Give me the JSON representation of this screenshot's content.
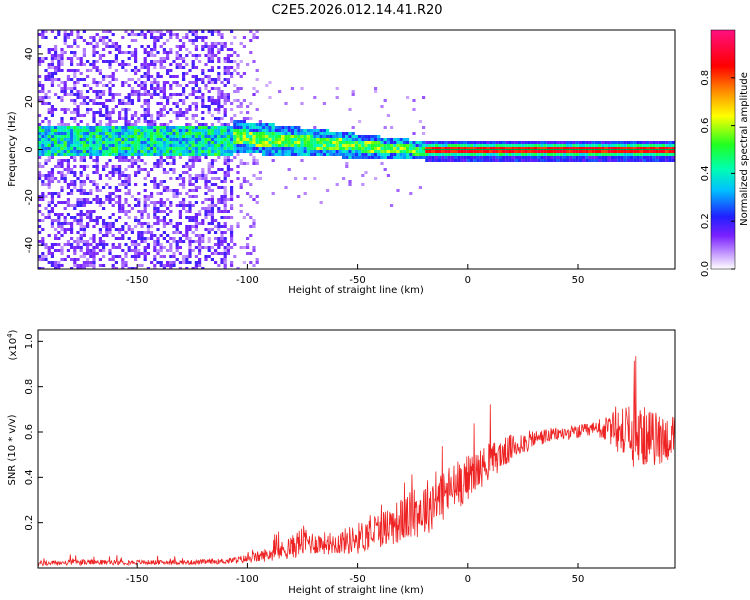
{
  "page_title": "C2E5.2026.012.14.41.R20",
  "chart_data": [
    {
      "type": "heatmap",
      "title": "C2E5.2026.012.14.41.R20",
      "xlabel": "Height of straight line (km)",
      "ylabel": "Frequency (Hz)",
      "xlim": [
        -195,
        94
      ],
      "ylim": [
        -50,
        50
      ],
      "x_ticks": [
        -150,
        -100,
        -50,
        0,
        50
      ],
      "y_ticks": [
        -40,
        -20,
        0,
        20,
        40
      ],
      "colorbar": {
        "label": "Normalized spectral amplitude",
        "range": [
          0.0,
          1.0
        ],
        "ticks": [
          0.0,
          0.2,
          0.4,
          0.6,
          0.8
        ],
        "tick_labels": [
          "0.0",
          "0.2",
          "0.4",
          "0.6",
          "0.8"
        ],
        "colors": [
          "#ffffff",
          "#c8a0ff",
          "#7a20ff",
          "#2020ff",
          "#00ffff",
          "#00ff40",
          "#ffff00",
          "#ff8000",
          "#ff0000",
          "#ff0080"
        ]
      },
      "regions": [
        {
          "x_range": [
            -195,
            -107
          ],
          "description_level": 0.15,
          "freq_center": 4,
          "noise_band": [
            -50,
            50
          ],
          "band_level": 0.35
        },
        {
          "x_range": [
            -107,
            -20
          ],
          "freq_center_start": 6,
          "freq_center_end": 0,
          "band_level": 0.55
        },
        {
          "x_range": [
            -20,
            94
          ],
          "freq_center": 0,
          "band_level": 0.85
        }
      ]
    },
    {
      "type": "line",
      "xlabel": "Height of straight line (km)",
      "ylabel": "SNR (10 * v/v)",
      "y_multiplier": "(x10",
      "y_multiplier_exp": "4",
      "y_multiplier_close": ")",
      "xlim": [
        -195,
        94
      ],
      "ylim": [
        0,
        1.05
      ],
      "x_ticks": [
        -150,
        -100,
        -50,
        0,
        50
      ],
      "y_ticks": [
        0.2,
        0.4,
        0.6,
        0.8,
        1.0
      ],
      "y_tick_labels": [
        "0.2",
        "0.4",
        "0.6",
        "0.8",
        "1.0"
      ],
      "series": [
        {
          "color": "#ee2222",
          "x": [
            -195,
            -175,
            -150,
            -125,
            -110,
            -100,
            -90,
            -80,
            -75,
            -70,
            -60,
            -50,
            -40,
            -30,
            -20,
            -15,
            -10,
            -5,
            0,
            10,
            20,
            30,
            40,
            50,
            60,
            65,
            70,
            75,
            80,
            85,
            90,
            94
          ],
          "y": [
            0.02,
            0.025,
            0.025,
            0.025,
            0.03,
            0.04,
            0.06,
            0.09,
            0.12,
            0.11,
            0.11,
            0.13,
            0.17,
            0.21,
            0.26,
            0.3,
            0.33,
            0.36,
            0.4,
            0.47,
            0.53,
            0.57,
            0.59,
            0.6,
            0.61,
            0.61,
            0.6,
            0.58,
            0.58,
            0.57,
            0.57,
            0.58
          ],
          "noise": [
            0.012,
            0.012,
            0.01,
            0.01,
            0.012,
            0.02,
            0.03,
            0.05,
            0.07,
            0.05,
            0.05,
            0.07,
            0.08,
            0.1,
            0.12,
            0.13,
            0.12,
            0.11,
            0.1,
            0.08,
            0.06,
            0.04,
            0.03,
            0.03,
            0.04,
            0.07,
            0.12,
            0.14,
            0.13,
            0.12,
            0.11,
            0.1
          ]
        }
      ]
    }
  ]
}
